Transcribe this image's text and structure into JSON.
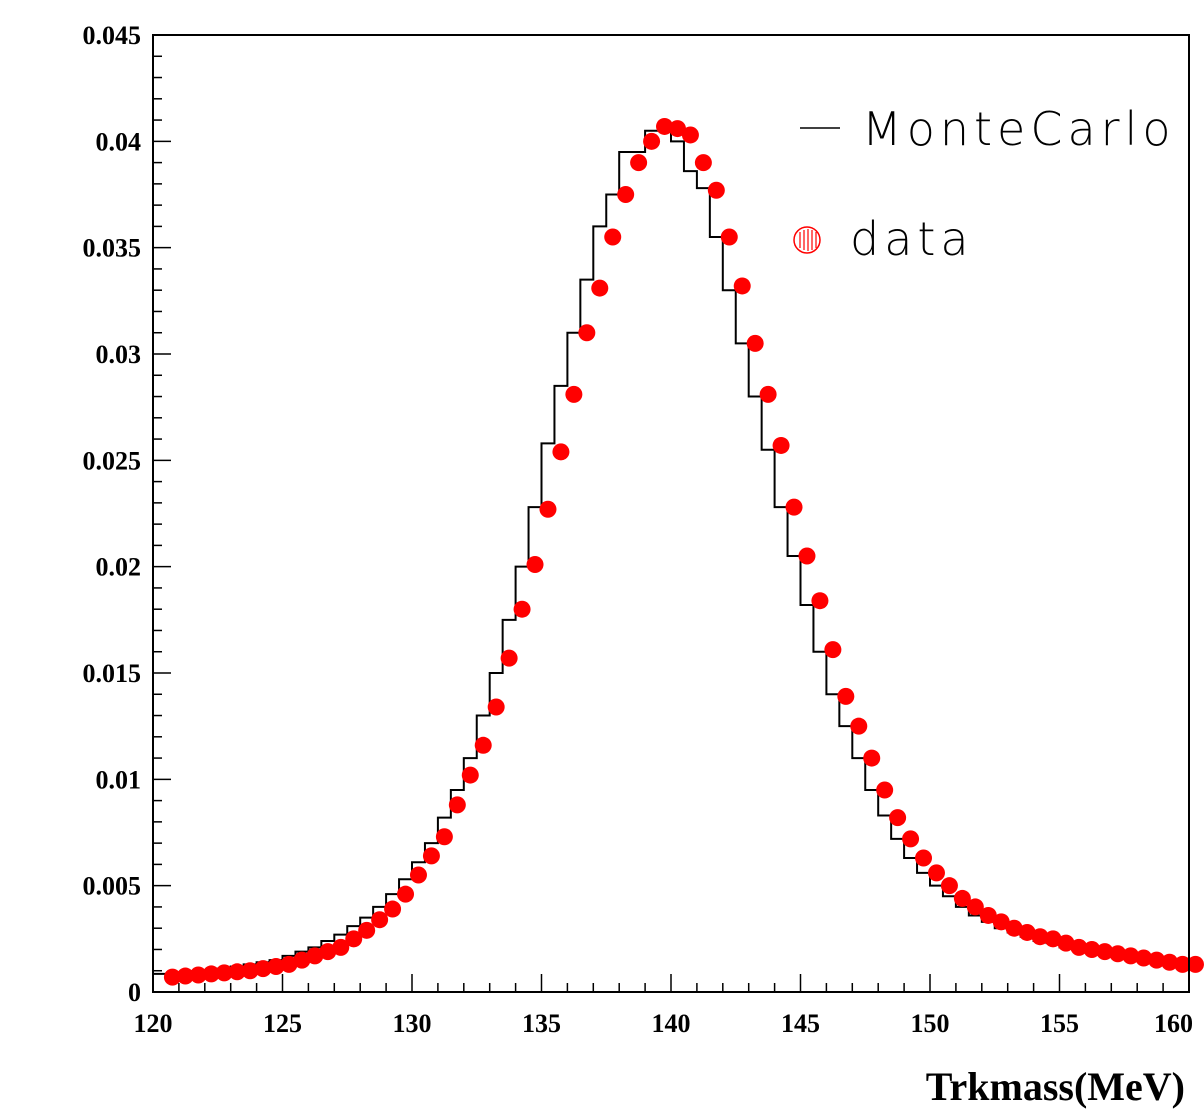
{
  "chart_data": {
    "type": "line",
    "xlabel": "Trkmass(MeV)",
    "ylabel": "",
    "xlim": [
      120,
      160
    ],
    "ylim": [
      0,
      0.045
    ],
    "x_ticks": [
      "120",
      "125",
      "130",
      "135",
      "140",
      "145",
      "150",
      "155",
      "160"
    ],
    "y_ticks": [
      "0",
      "0.005",
      "0.01",
      "0.015",
      "0.02",
      "0.025",
      "0.03",
      "0.035",
      "0.04",
      "0.045"
    ],
    "legend": {
      "placement": "top-right",
      "entries": [
        "MonteCarlo",
        "data"
      ]
    },
    "colors": {
      "montecarlo": "#000000",
      "data": "#ff0000"
    },
    "series": [
      {
        "name": "MonteCarlo",
        "style": "step-histogram",
        "bin_edges_start": 120,
        "bin_width": 0.5,
        "values": [
          0.00085,
          0.00085,
          0.0009,
          0.00095,
          0.001,
          0.0011,
          0.0012,
          0.0013,
          0.0014,
          0.0015,
          0.0017,
          0.0019,
          0.0021,
          0.0024,
          0.0027,
          0.0031,
          0.0035,
          0.004,
          0.0046,
          0.0053,
          0.0061,
          0.007,
          0.0082,
          0.0095,
          0.011,
          0.013,
          0.015,
          0.0175,
          0.02,
          0.0228,
          0.0258,
          0.0285,
          0.031,
          0.0335,
          0.036,
          0.0375,
          0.0395,
          0.0395,
          0.0405,
          0.0405,
          0.04,
          0.0386,
          0.0378,
          0.0355,
          0.033,
          0.0305,
          0.028,
          0.0255,
          0.0228,
          0.0205,
          0.0182,
          0.016,
          0.014,
          0.0125,
          0.011,
          0.0095,
          0.0083,
          0.0072,
          0.0063,
          0.0056,
          0.005,
          0.0045,
          0.004,
          0.0036,
          0.0033,
          0.003,
          0.0028,
          0.0026,
          0.0024,
          0.0023,
          0.0021,
          0.002,
          0.0019,
          0.0018,
          0.0017,
          0.0016,
          0.0015,
          0.0015,
          0.0014,
          0.0014,
          0.0013
        ]
      },
      {
        "name": "data",
        "style": "markers",
        "x_start": 120.75,
        "x_step": 0.5,
        "values": [
          0.0007,
          0.00075,
          0.0008,
          0.00085,
          0.0009,
          0.00095,
          0.001,
          0.0011,
          0.0012,
          0.0013,
          0.0015,
          0.0017,
          0.0019,
          0.0021,
          0.0025,
          0.0029,
          0.0034,
          0.0039,
          0.0046,
          0.0055,
          0.0064,
          0.0073,
          0.0088,
          0.0102,
          0.0116,
          0.0134,
          0.0157,
          0.018,
          0.0201,
          0.0227,
          0.0254,
          0.0281,
          0.031,
          0.0331,
          0.0355,
          0.0375,
          0.039,
          0.04,
          0.0407,
          0.0406,
          0.0403,
          0.039,
          0.0377,
          0.0355,
          0.0332,
          0.0305,
          0.0281,
          0.0257,
          0.0228,
          0.0205,
          0.0184,
          0.0161,
          0.0139,
          0.0125,
          0.011,
          0.0095,
          0.0082,
          0.0072,
          0.0063,
          0.0056,
          0.005,
          0.0044,
          0.004,
          0.0036,
          0.0033,
          0.003,
          0.0028,
          0.0026,
          0.0025,
          0.0023,
          0.0021,
          0.002,
          0.0019,
          0.0018,
          0.0017,
          0.0016,
          0.0015,
          0.0014,
          0.0013,
          0.0013
        ]
      }
    ]
  }
}
